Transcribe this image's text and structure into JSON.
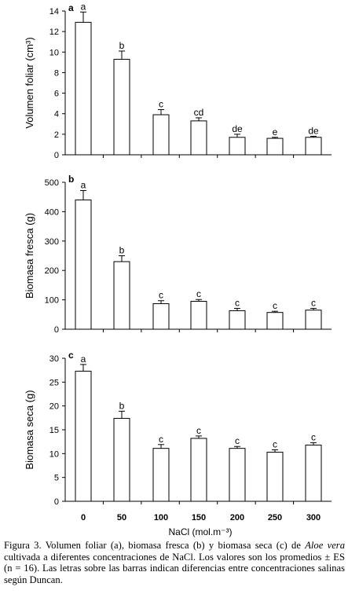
{
  "chart_data": [
    {
      "type": "bar",
      "panel_label": "a",
      "categories": [
        "0",
        "50",
        "100",
        "150",
        "200",
        "250",
        "300"
      ],
      "values": [
        12.9,
        9.3,
        3.9,
        3.3,
        1.7,
        1.6,
        1.7
      ],
      "errors": [
        1.0,
        0.8,
        0.5,
        0.3,
        0.3,
        0.1,
        0.1
      ],
      "significance": [
        "a",
        "b",
        "c",
        "cd",
        "de",
        "e",
        "de"
      ],
      "ylabel": "Volumen foliar (cm³)",
      "ylim": [
        0,
        14
      ],
      "yticks": [
        "0",
        "2",
        "4",
        "6",
        "8",
        "10",
        "12",
        "14"
      ],
      "bar_color": "#ffffff",
      "edge_color": "#000000"
    },
    {
      "type": "bar",
      "panel_label": "b",
      "categories": [
        "0",
        "50",
        "100",
        "150",
        "200",
        "250",
        "300"
      ],
      "values": [
        440,
        230,
        87,
        95,
        63,
        57,
        65
      ],
      "errors": [
        32,
        20,
        10,
        6,
        8,
        4,
        6
      ],
      "significance": [
        "a",
        "b",
        "c",
        "c",
        "c",
        "c",
        "c"
      ],
      "ylabel": "Biomasa fresca (g)",
      "ylim": [
        0,
        500
      ],
      "yticks": [
        "0",
        "100",
        "200",
        "300",
        "400",
        "500"
      ],
      "bar_color": "#ffffff",
      "edge_color": "#000000"
    },
    {
      "type": "bar",
      "panel_label": "c",
      "categories": [
        "0",
        "50",
        "100",
        "150",
        "200",
        "250",
        "300"
      ],
      "values": [
        27.3,
        17.4,
        11.1,
        13.2,
        11.1,
        10.3,
        11.8
      ],
      "errors": [
        1.4,
        1.5,
        0.8,
        0.5,
        0.4,
        0.5,
        0.5
      ],
      "significance": [
        "a",
        "b",
        "c",
        "c",
        "c",
        "c",
        "c"
      ],
      "ylabel": "Biomasa seca (g)",
      "xlabel": "NaCl (mol.m⁻³)",
      "ylim": [
        0,
        30
      ],
      "yticks": [
        "0",
        "5",
        "10",
        "15",
        "20",
        "25",
        "30"
      ],
      "bar_color": "#ffffff",
      "edge_color": "#000000"
    }
  ],
  "caption": {
    "part1": "Figura 3. Volumen foliar (a), biomasa fresca (b) y biomasa seca (c) de ",
    "species": "Aloe vera",
    "part2": " cultivada a diferentes concentraciones de NaCl. Los valores son los promedios ± ES (n = 16). Las letras sobre las barras indican diferencias entre concentraciones salinas según Duncan."
  }
}
